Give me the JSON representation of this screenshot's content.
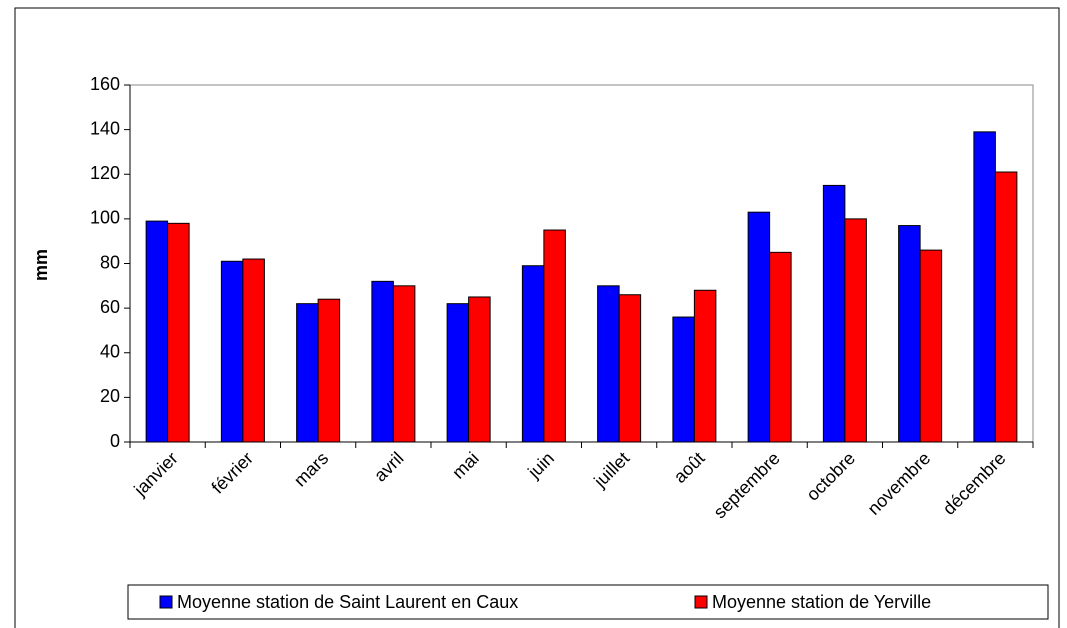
{
  "chart_data": {
    "type": "bar",
    "y_label": "mm",
    "categories": [
      "janvier",
      "février",
      "mars",
      "avril",
      "mai",
      "juin",
      "juillet",
      "août",
      "septembre",
      "octobre",
      "novembre",
      "décembre"
    ],
    "series": [
      {
        "name": "Moyenne station de Saint Laurent en Caux",
        "color": "#0000ff",
        "values": [
          99,
          81,
          62,
          72,
          62,
          79,
          70,
          56,
          103,
          115,
          97,
          139
        ]
      },
      {
        "name": "Moyenne station de Yerville",
        "color": "#ff0000",
        "values": [
          98,
          82,
          64,
          70,
          65,
          95,
          66,
          68,
          85,
          100,
          86,
          121
        ]
      }
    ],
    "ylim": [
      0,
      160
    ],
    "yticks": [
      0,
      20,
      40,
      60,
      80,
      100,
      120,
      140,
      160
    ],
    "grid": false,
    "legend": "bottom"
  }
}
